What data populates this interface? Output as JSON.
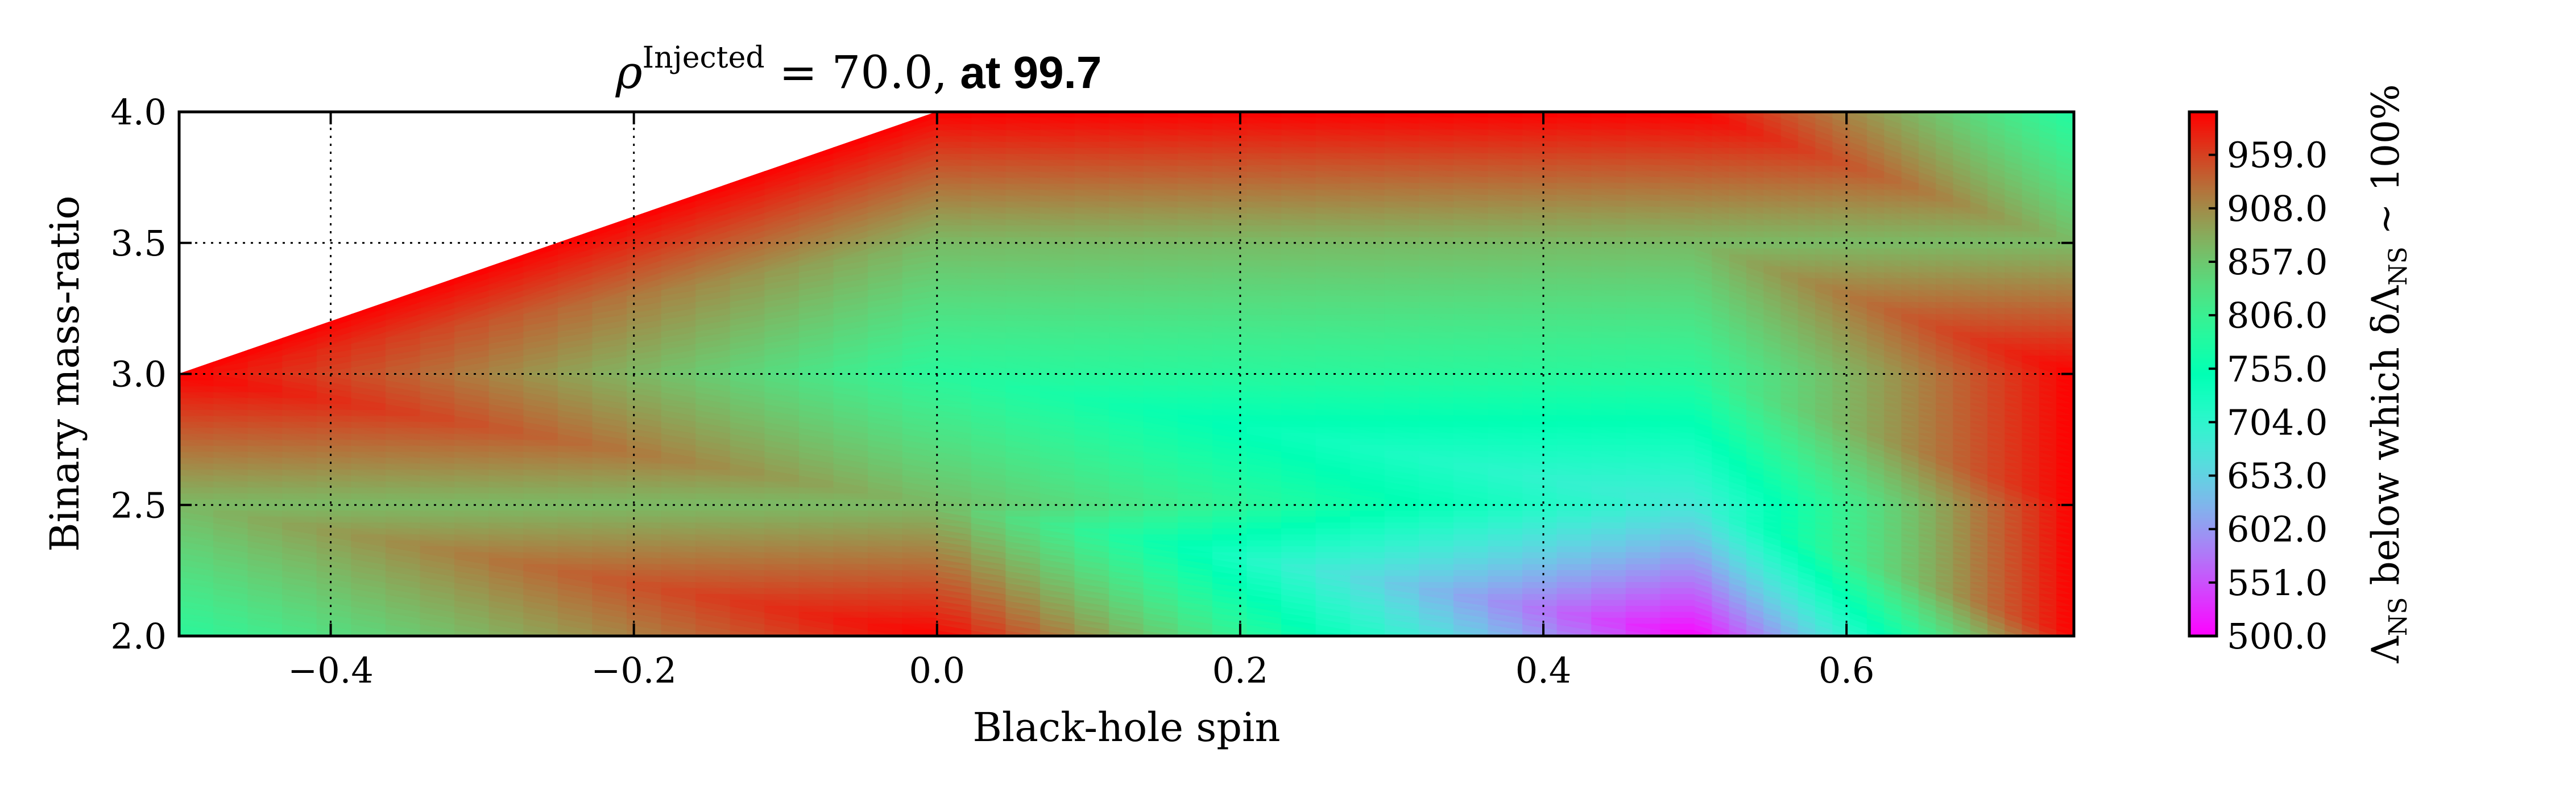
{
  "chart_data": {
    "type": "heatmap",
    "title_parts": {
      "rho": "ρ",
      "superscript": "Injected",
      "rest": " = 70.0,",
      "bold_tail": " at 99.7"
    },
    "xlabel": "Black-hole spin",
    "ylabel": "Binary mass-ratio",
    "colorbar_label": {
      "lambda": "Λ",
      "ns_sub": "NS",
      "middle": " below which δΛ",
      "ns_sub2": "NS",
      "tail": " ~ 100%"
    },
    "xlim": [
      -0.5,
      0.75
    ],
    "ylim": [
      2.0,
      4.0
    ],
    "xticks": [
      -0.4,
      -0.2,
      0.0,
      0.2,
      0.4,
      0.6
    ],
    "xtick_labels": [
      "−0.4",
      "−0.2",
      "0.0",
      "0.2",
      "0.4",
      "0.6"
    ],
    "yticks": [
      2.0,
      2.5,
      3.0,
      3.5,
      4.0
    ],
    "ytick_labels": [
      "2.0",
      "2.5",
      "3.0",
      "3.5",
      "4.0"
    ],
    "grid": true,
    "colorbar": {
      "vmin": 500.0,
      "vmax": 1000.0,
      "ticks": [
        500.0,
        551.0,
        602.0,
        653.0,
        704.0,
        755.0,
        806.0,
        857.0,
        908.0,
        959.0
      ],
      "tick_labels": [
        "500.0",
        "551.0",
        "602.0",
        "653.0",
        "704.0",
        "755.0",
        "806.0",
        "857.0",
        "908.0",
        "959.0"
      ],
      "colormap": "rainbow"
    },
    "points": [
      {
        "x": -0.5,
        "y": 2.0,
        "v": 790
      },
      {
        "x": -0.5,
        "y": 2.5,
        "v": 870
      },
      {
        "x": -0.5,
        "y": 3.0,
        "v": 1000
      },
      {
        "x": 0.0,
        "y": 2.0,
        "v": 1000
      },
      {
        "x": 0.0,
        "y": 2.5,
        "v": 870
      },
      {
        "x": 0.0,
        "y": 3.0,
        "v": 790
      },
      {
        "x": 0.0,
        "y": 3.5,
        "v": 870
      },
      {
        "x": 0.0,
        "y": 4.0,
        "v": 1000
      },
      {
        "x": 0.5,
        "y": 2.0,
        "v": 500
      },
      {
        "x": 0.5,
        "y": 2.5,
        "v": 680
      },
      {
        "x": 0.5,
        "y": 3.0,
        "v": 790
      },
      {
        "x": 0.5,
        "y": 3.5,
        "v": 870
      },
      {
        "x": 0.5,
        "y": 4.0,
        "v": 1000
      },
      {
        "x": 0.75,
        "y": 2.0,
        "v": 1000
      },
      {
        "x": 0.75,
        "y": 2.5,
        "v": 1000
      },
      {
        "x": 0.75,
        "y": 3.0,
        "v": 1000
      },
      {
        "x": 0.75,
        "y": 3.5,
        "v": 870
      },
      {
        "x": 0.75,
        "y": 4.0,
        "v": 780
      }
    ],
    "triangles": [
      [
        0,
        1,
        3
      ],
      [
        1,
        3,
        4
      ],
      [
        1,
        2,
        4
      ],
      [
        2,
        4,
        5
      ],
      [
        2,
        6,
        7
      ],
      [
        2,
        5,
        6
      ],
      [
        3,
        4,
        8
      ],
      [
        4,
        8,
        9
      ],
      [
        4,
        5,
        9
      ],
      [
        5,
        9,
        10
      ],
      [
        5,
        6,
        10
      ],
      [
        6,
        10,
        11
      ],
      [
        6,
        7,
        11
      ],
      [
        7,
        11,
        12
      ],
      [
        8,
        9,
        13
      ],
      [
        9,
        13,
        14
      ],
      [
        9,
        10,
        14
      ],
      [
        10,
        14,
        15
      ],
      [
        10,
        11,
        15
      ],
      [
        11,
        15,
        16
      ],
      [
        11,
        12,
        16
      ],
      [
        12,
        16,
        17
      ]
    ]
  }
}
